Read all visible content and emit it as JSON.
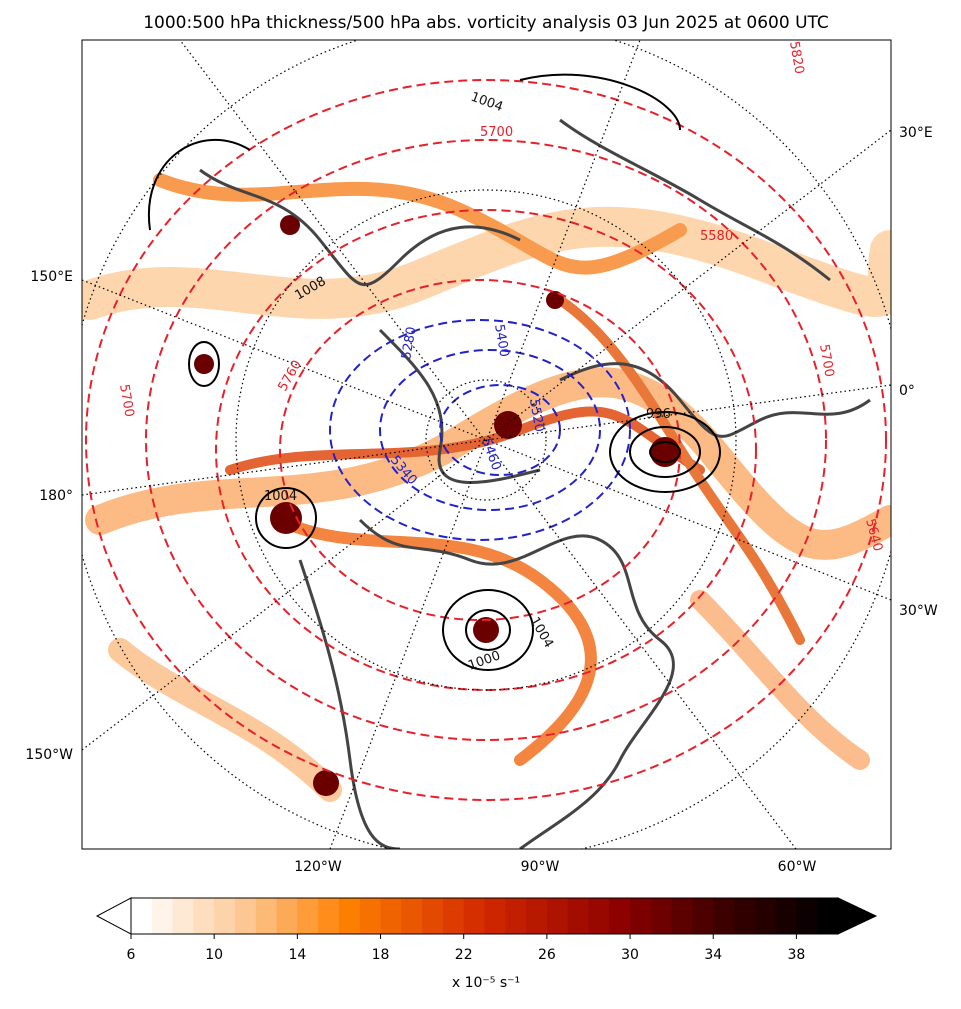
{
  "map": {
    "title": "1000:500 hPa thickness/500 hPa abs. vorticity analysis 03 Jun 2025 at 0600 UTC",
    "lon_labels_right": [
      "30°E",
      "0°",
      "30°W"
    ],
    "lon_labels_left": [
      "150°E",
      "180°",
      "150°W"
    ],
    "lon_labels_bottom": [
      "120°W",
      "90°W",
      "60°W"
    ],
    "thickness_labels": [
      "5700",
      "5580",
      "5640",
      "5700",
      "5820",
      "5700",
      "5760"
    ],
    "low_thickness_labels": [
      "5280",
      "5340",
      "5400",
      "5460",
      "5520"
    ],
    "pressure_labels": [
      "1004",
      "1008",
      "996",
      "1000",
      "1004",
      "1004"
    ]
  },
  "colorbar": {
    "lim": [
      6,
      40
    ],
    "ticks": [
      6,
      10,
      14,
      18,
      22,
      26,
      30,
      34,
      38
    ],
    "label": "x 10⁻⁵ s⁻¹"
  }
}
